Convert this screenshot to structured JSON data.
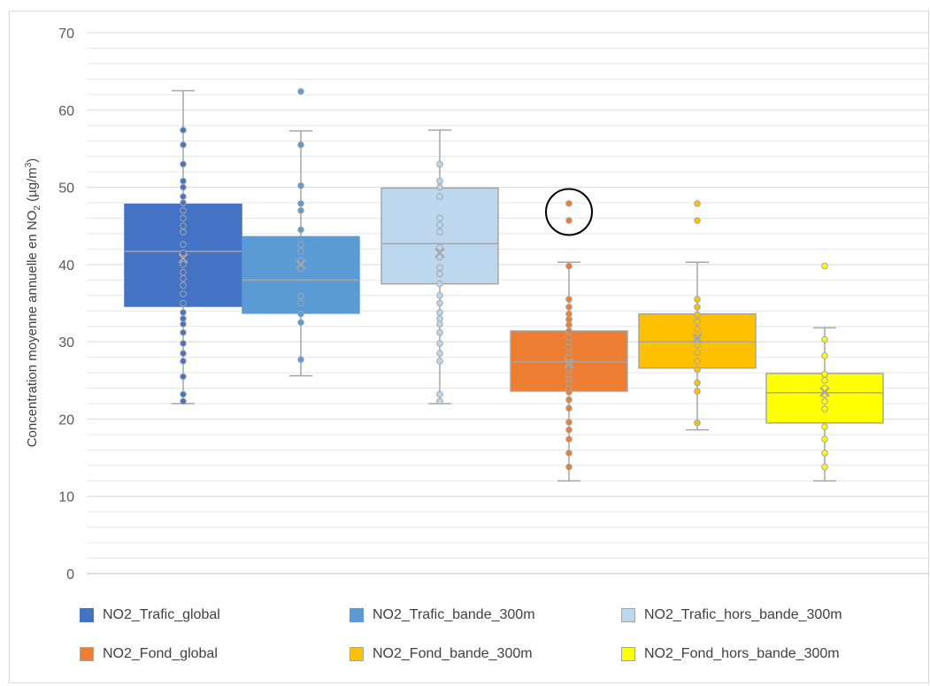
{
  "chart_data": {
    "type": "boxplot",
    "ylabel_parts": [
      "Concentration moyenne annuelle en NO",
      "2",
      " (µg/m",
      "3",
      ")"
    ],
    "ylim": [
      0,
      70
    ],
    "yticks": [
      0,
      10,
      20,
      30,
      40,
      50,
      60,
      70
    ],
    "grid": true,
    "legend_position": "bottom",
    "series": [
      {
        "name": "NO2_Trafic_global",
        "color": "#4472C4",
        "stroke": "#4472C4",
        "point_fill": "#4472C4",
        "min": 22,
        "q1": 34.6,
        "median": 41.7,
        "q3": 47.8,
        "max": 62.5,
        "mean": 40.8,
        "points": [
          22.3,
          23.2,
          25.5,
          27.5,
          28.5,
          29.8,
          31.2,
          32.3,
          33.0,
          33.8,
          35.0,
          36.2,
          37.3,
          38.2,
          39.0,
          40.0,
          41.5,
          42.6,
          44.2,
          45.0,
          46.0,
          47.0,
          48.0,
          48.8,
          50.0,
          50.8,
          53.0,
          55.5,
          57.4
        ]
      },
      {
        "name": "NO2_Trafic_bande_300m",
        "color": "#5B9BD5",
        "stroke": "#5B9BD5",
        "point_fill": "#5B9BD5",
        "min": 25.6,
        "q1": 33.7,
        "median": 38.0,
        "q3": 43.6,
        "max": 57.3,
        "mean": 40.0,
        "points": [
          27.7,
          32.5,
          33.6,
          35.0,
          35.9,
          39.5,
          40.5,
          41.7,
          42.6,
          44.5,
          47.0,
          47.9,
          50.2,
          55.5,
          62.4
        ]
      },
      {
        "name": "NO2_Trafic_hors_bande_300m",
        "color": "#BDD7EE",
        "stroke": "#A5A5A5",
        "point_fill": "#BDD7EE",
        "min": 22,
        "q1": 37.5,
        "median": 42.7,
        "q3": 49.9,
        "max": 57.4,
        "mean": 41.5,
        "points": [
          22.3,
          23.2,
          27.5,
          28.5,
          29.8,
          31.2,
          32.3,
          33.0,
          33.8,
          35.0,
          36.0,
          37.5,
          38.8,
          39.6,
          41.0,
          42.2,
          44.2,
          45.1,
          46.0,
          48.8,
          50.0,
          50.8,
          53.0
        ]
      },
      {
        "name": "NO2_Fond_global",
        "color": "#ED7D31",
        "stroke": "#A5A5A5",
        "point_fill": "#ED7D31",
        "min": 12,
        "q1": 23.6,
        "median": 27.4,
        "q3": 31.4,
        "max": 40.3,
        "mean": 27.2,
        "points": [
          13.8,
          15.6,
          17.4,
          18.6,
          19.6,
          21.4,
          22.5,
          23.5,
          24.0,
          24.6,
          25.3,
          25.8,
          26.5,
          27.1,
          28.0,
          28.6,
          29.3,
          30.0,
          30.6,
          31.4,
          32.2,
          32.9,
          33.6,
          34.5,
          35.5,
          39.8,
          45.7,
          47.9
        ]
      },
      {
        "name": "NO2_Fond_bande_300m",
        "color": "#FFC000",
        "stroke": "#A5A5A5",
        "point_fill": "#FFC000",
        "min": 18.6,
        "q1": 26.6,
        "median": 30.0,
        "q3": 33.6,
        "max": 40.3,
        "mean": 30.5,
        "points": [
          19.5,
          23.6,
          24.7,
          26.4,
          27.5,
          28.6,
          29.6,
          30.6,
          31.6,
          32.6,
          33.5,
          34.5,
          35.5,
          45.7,
          47.9
        ]
      },
      {
        "name": "NO2_Fond_hors_bande_300m",
        "color": "#FFFF00",
        "stroke": "#A5A5A5",
        "point_fill": "#FFFF00",
        "min": 12,
        "q1": 19.5,
        "median": 23.4,
        "q3": 25.9,
        "max": 31.8,
        "mean": 23.5,
        "points": [
          13.8,
          15.6,
          17.4,
          19.0,
          21.3,
          22.3,
          23.2,
          24.0,
          25.0,
          25.8,
          28.2,
          30.3,
          39.8
        ]
      }
    ],
    "annotations": [
      {
        "type": "circle",
        "series": "NO2_Fond_global",
        "around_values": [
          45.7,
          47.9
        ]
      }
    ]
  }
}
